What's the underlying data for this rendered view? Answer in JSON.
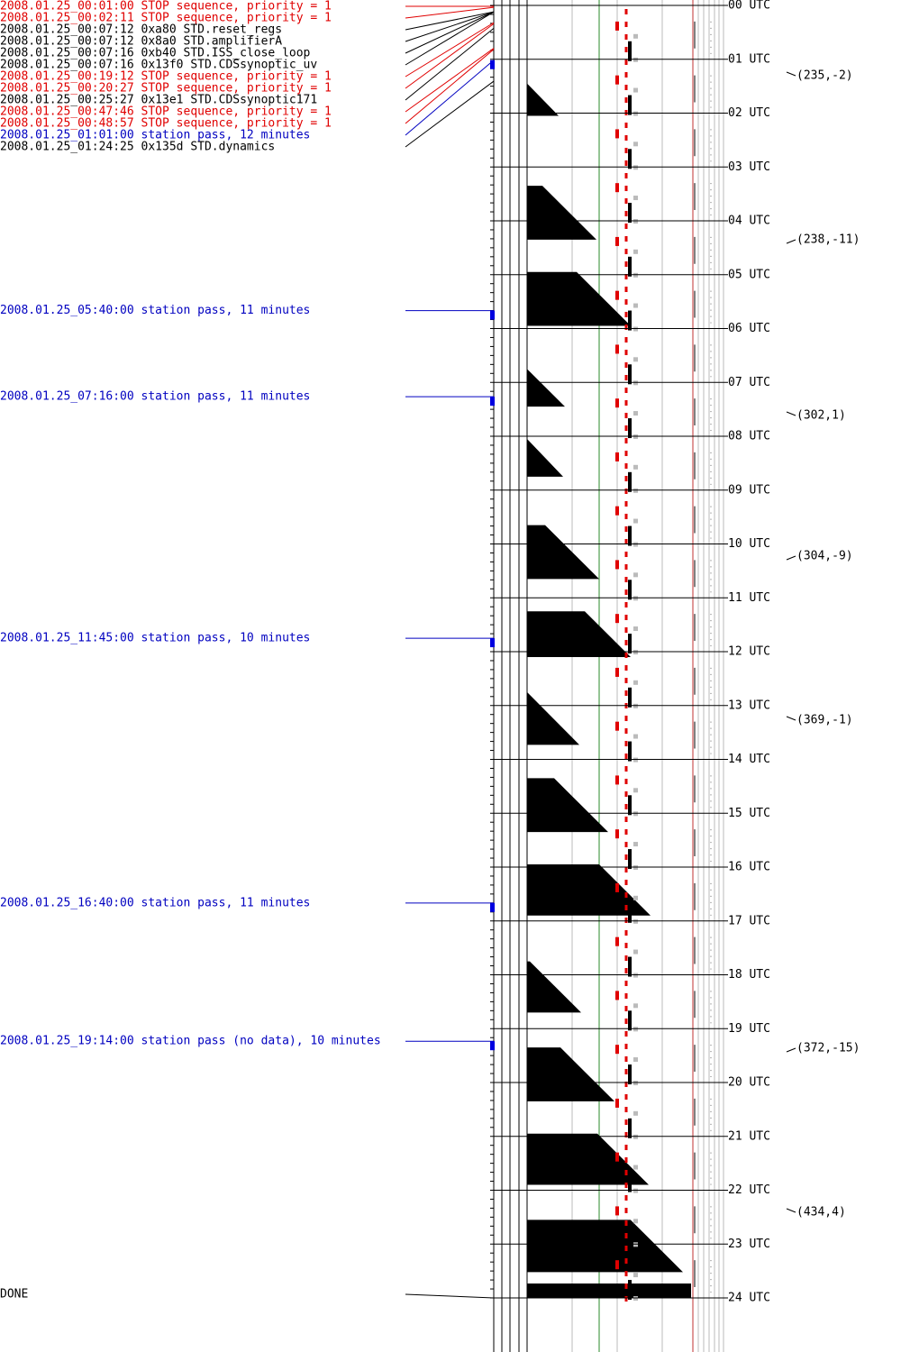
{
  "events": [
    {
      "text": "2008.01.25_00:01:00 STOP sequence, priority = 1",
      "color": "#e00000"
    },
    {
      "text": "2008.01.25_00:02:11 STOP sequence, priority = 1",
      "color": "#e00000"
    },
    {
      "text": "2008.01.25_00:07:12  0xa80 STD.reset_regs",
      "color": "#000000"
    },
    {
      "text": "2008.01.25_00:07:12  0x8a0 STD.amplifierA",
      "color": "#000000"
    },
    {
      "text": "2008.01.25_00:07:16  0xb40 STD.ISS_close_loop",
      "color": "#000000"
    },
    {
      "text": "2008.01.25_00:07:16 0x13f0 STD.CDSsynoptic_uv",
      "color": "#000000"
    },
    {
      "text": "2008.01.25_00:19:12 STOP sequence, priority = 1",
      "color": "#e00000"
    },
    {
      "text": "2008.01.25_00:20:27 STOP sequence, priority = 1",
      "color": "#e00000"
    },
    {
      "text": "2008.01.25_00:25:27 0x13e1 STD.CDSsynoptic171",
      "color": "#000000"
    },
    {
      "text": "2008.01.25_00:47:46 STOP sequence, priority = 1",
      "color": "#e00000"
    },
    {
      "text": "2008.01.25_00:48:57 STOP sequence, priority = 1",
      "color": "#e00000"
    },
    {
      "text": "2008.01.25_01:01:00 station pass, 12 minutes",
      "color": "#0000c0"
    },
    {
      "text": "2008.01.25_01:24:25 0x135d STD.dynamics",
      "color": "#000000"
    },
    {
      "text": "2008.01.25_05:40:00 station pass, 11 minutes",
      "color": "#0000c0"
    },
    {
      "text": "2008.01.25_07:16:00 station pass, 11 minutes",
      "color": "#0000c0"
    },
    {
      "text": "2008.01.25_11:45:00 station pass, 10 minutes",
      "color": "#0000c0"
    },
    {
      "text": "2008.01.25_16:40:00 station pass, 11 minutes",
      "color": "#0000c0"
    },
    {
      "text": "2008.01.25_19:14:00 station pass (no data), 10 minutes",
      "color": "#0000c0"
    }
  ],
  "footer": "DONE",
  "hours": [
    "00 UTC",
    "01 UTC",
    "02 UTC",
    "03 UTC",
    "04 UTC",
    "05 UTC",
    "06 UTC",
    "07 UTC",
    "08 UTC",
    "09 UTC",
    "10 UTC",
    "11 UTC",
    "12 UTC",
    "13 UTC",
    "14 UTC",
    "15 UTC",
    "16 UTC",
    "17 UTC",
    "18 UTC",
    "19 UTC",
    "20 UTC",
    "21 UTC",
    "22 UTC",
    "23 UTC",
    "24 UTC"
  ],
  "annotations": [
    "(235,-2)",
    "(238,-11)",
    "(302,1)",
    "(304,-9)",
    "(369,-1)",
    "(372,-15)",
    "(434,4)"
  ]
}
